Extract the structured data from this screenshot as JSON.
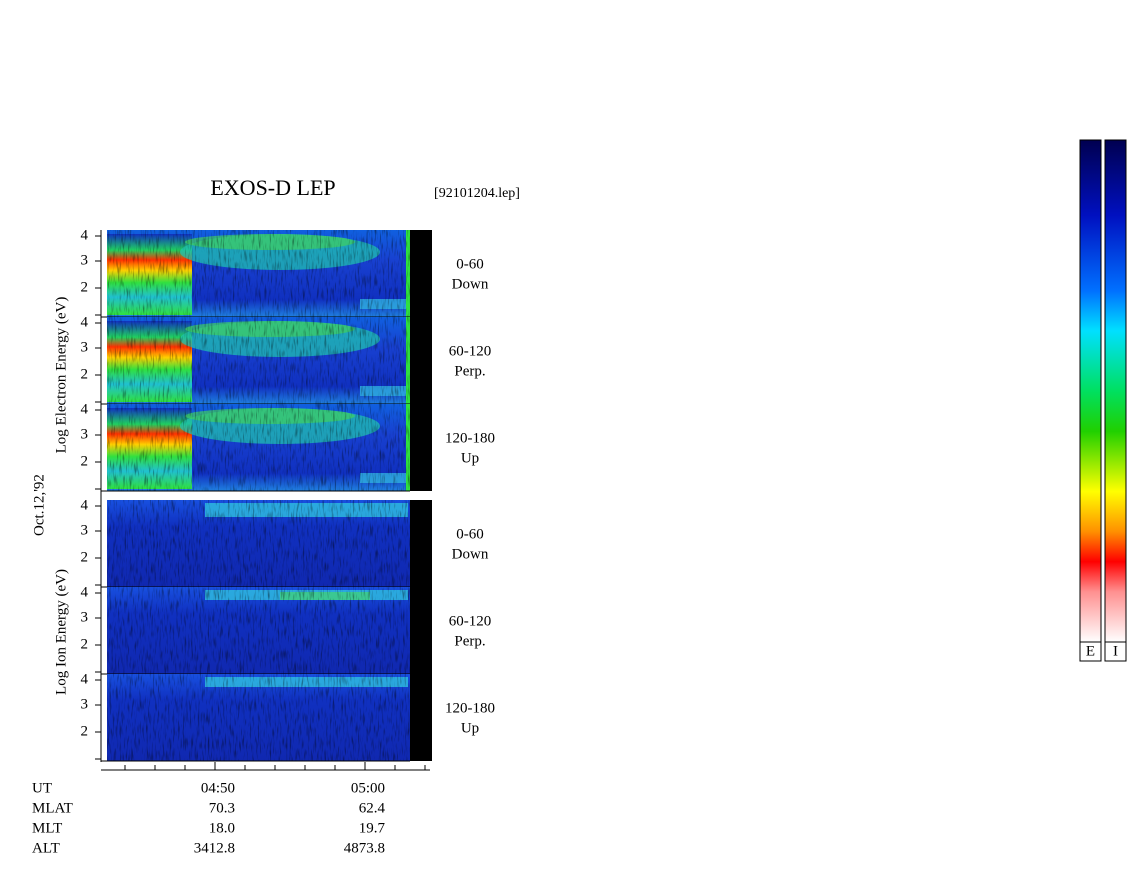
{
  "header": {
    "title": "EXOS-D LEP",
    "file": "[92101204.lep]"
  },
  "date": "Oct.12,'92",
  "electron": {
    "label": "Log Electron Energy (eV)",
    "panels": [
      {
        "angle": "0-60",
        "direction": "Down"
      },
      {
        "angle": "60-120",
        "direction": "Perp."
      },
      {
        "angle": "120-180",
        "direction": "Up"
      }
    ]
  },
  "ion": {
    "label": "Log Ion Energy (eV)",
    "panels": [
      {
        "angle": "0-60",
        "direction": "Down"
      },
      {
        "angle": "60-120",
        "direction": "Perp."
      },
      {
        "angle": "120-180",
        "direction": "Up"
      }
    ]
  },
  "yticks": [
    "4",
    "3",
    "2"
  ],
  "ephemeris": [
    {
      "name": "UT",
      "values": [
        "04:50",
        "05:00"
      ]
    },
    {
      "name": "MLAT",
      "values": [
        "70.3",
        "62.4"
      ]
    },
    {
      "name": "MLT",
      "values": [
        "18.0",
        "19.7"
      ]
    },
    {
      "name": "ALT",
      "values": [
        "3412.8",
        "4873.8"
      ]
    }
  ],
  "colorbars": [
    "E",
    "I"
  ]
}
